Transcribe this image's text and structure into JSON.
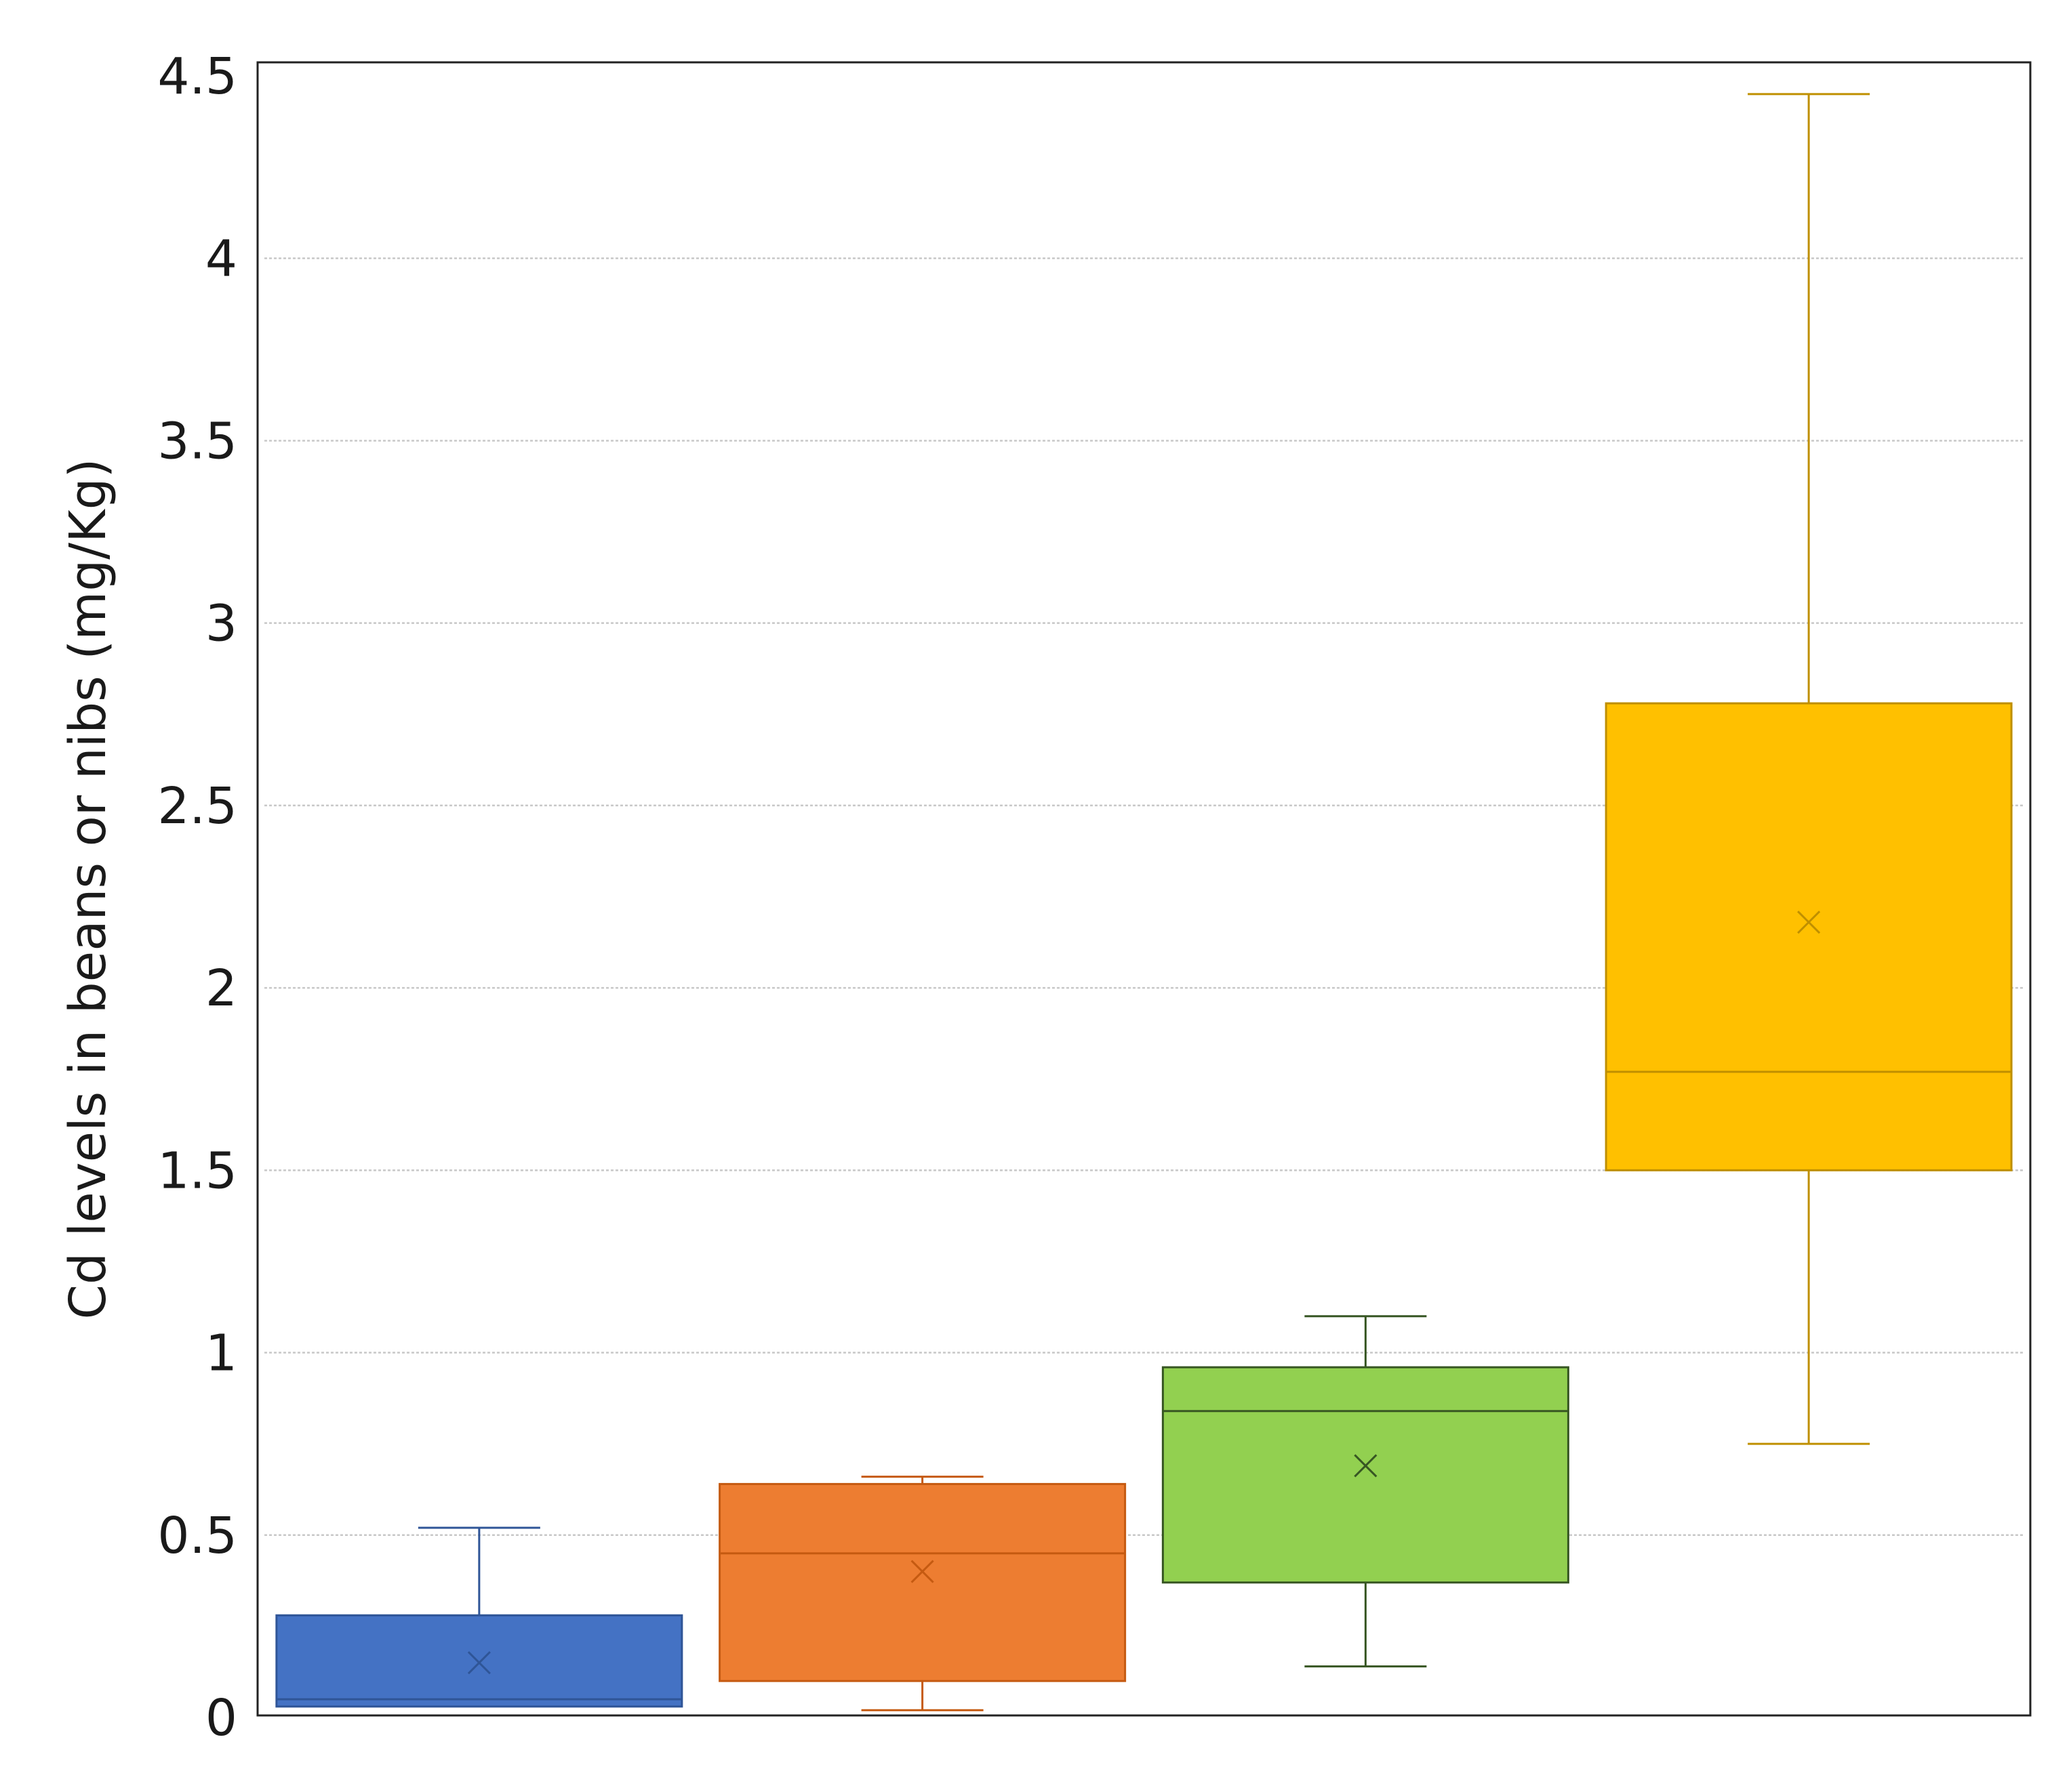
{
  "chart_data": {
    "type": "boxplot",
    "title": "",
    "xlabel": "",
    "ylabel": "Cd levels  in beans or nibs (mg/Kg)",
    "ylim": [
      0,
      4.5
    ],
    "yticks": [
      0,
      0.5,
      1,
      1.5,
      2,
      2.5,
      3,
      3.5,
      4,
      4.5
    ],
    "yticks_labels": [
      "0",
      "0.5",
      "1",
      "1.5",
      "2",
      "2.5",
      "3",
      "3.5",
      "4",
      "4.5"
    ],
    "grid": true,
    "legend": "none",
    "boxes": [
      {
        "color": "#4472C4",
        "stroke": "#2F5597",
        "min": 0.03,
        "q1": 0.03,
        "median": 0.05,
        "q3": 0.28,
        "max": 0.52,
        "mean": 0.15
      },
      {
        "color": "#ED7D31",
        "stroke": "#C55A11",
        "min": 0.02,
        "q1": 0.1,
        "median": 0.45,
        "q3": 0.64,
        "max": 0.66,
        "mean": 0.4
      },
      {
        "color": "#92D050",
        "stroke": "#375623",
        "min": 0.14,
        "q1": 0.37,
        "median": 0.84,
        "q3": 0.96,
        "max": 1.1,
        "mean": 0.69
      },
      {
        "color": "#FFC000",
        "stroke": "#BF8F00",
        "min": 0.75,
        "q1": 1.5,
        "median": 1.77,
        "q3": 2.78,
        "max": 4.45,
        "mean": 2.18
      }
    ]
  }
}
